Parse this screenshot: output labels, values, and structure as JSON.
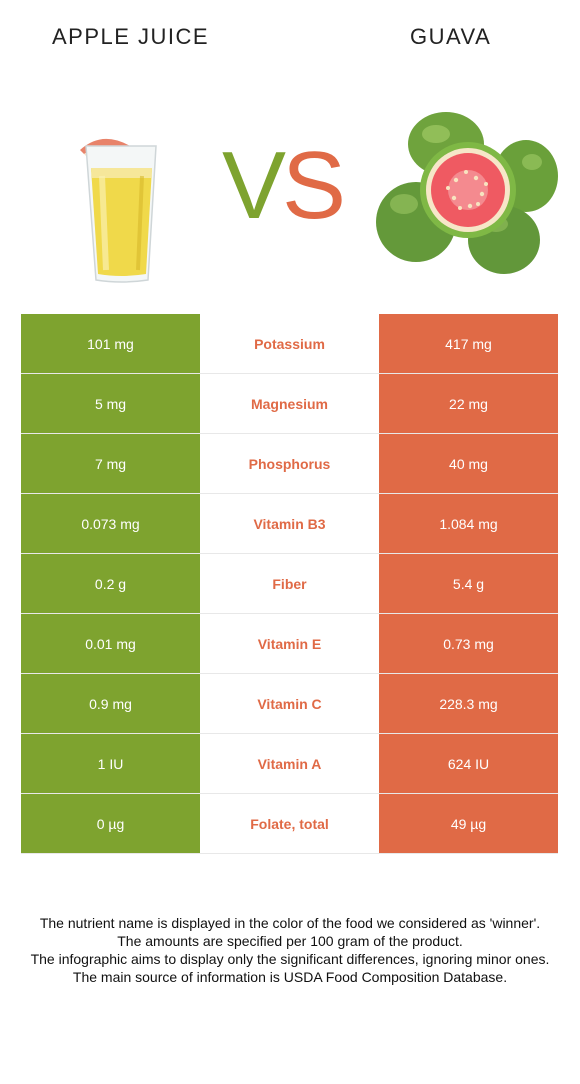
{
  "header": {
    "left_food": "APPLE JUICE",
    "right_food": "GUAVA",
    "vs_v": "V",
    "vs_s": "S"
  },
  "colors": {
    "winner_left": "#7ea32f",
    "winner_right": "#e06a46"
  },
  "rows": [
    {
      "left": "101 mg",
      "nutrient": "Potassium",
      "right": "417 mg"
    },
    {
      "left": "5 mg",
      "nutrient": "Magnesium",
      "right": "22 mg"
    },
    {
      "left": "7 mg",
      "nutrient": "Phosphorus",
      "right": "40 mg"
    },
    {
      "left": "0.073 mg",
      "nutrient": "Vitamin B3",
      "right": "1.084 mg"
    },
    {
      "left": "0.2 g",
      "nutrient": "Fiber",
      "right": "5.4 g"
    },
    {
      "left": "0.01 mg",
      "nutrient": "Vitamin E",
      "right": "0.73 mg"
    },
    {
      "left": "0.9 mg",
      "nutrient": "Vitamin C",
      "right": "228.3 mg"
    },
    {
      "left": "1 IU",
      "nutrient": "Vitamin A",
      "right": "624 IU"
    },
    {
      "left": "0 µg",
      "nutrient": "Folate, total",
      "right": "49 µg"
    }
  ],
  "footer": {
    "line1": "The nutrient name is displayed in the color of the food we considered as 'winner'.",
    "line2": "The amounts are specified per 100 gram of the product.",
    "line3": "The infographic aims to display only the significant differences, ignoring minor ones.",
    "line4": "The main source of information is USDA Food Composition Database."
  }
}
